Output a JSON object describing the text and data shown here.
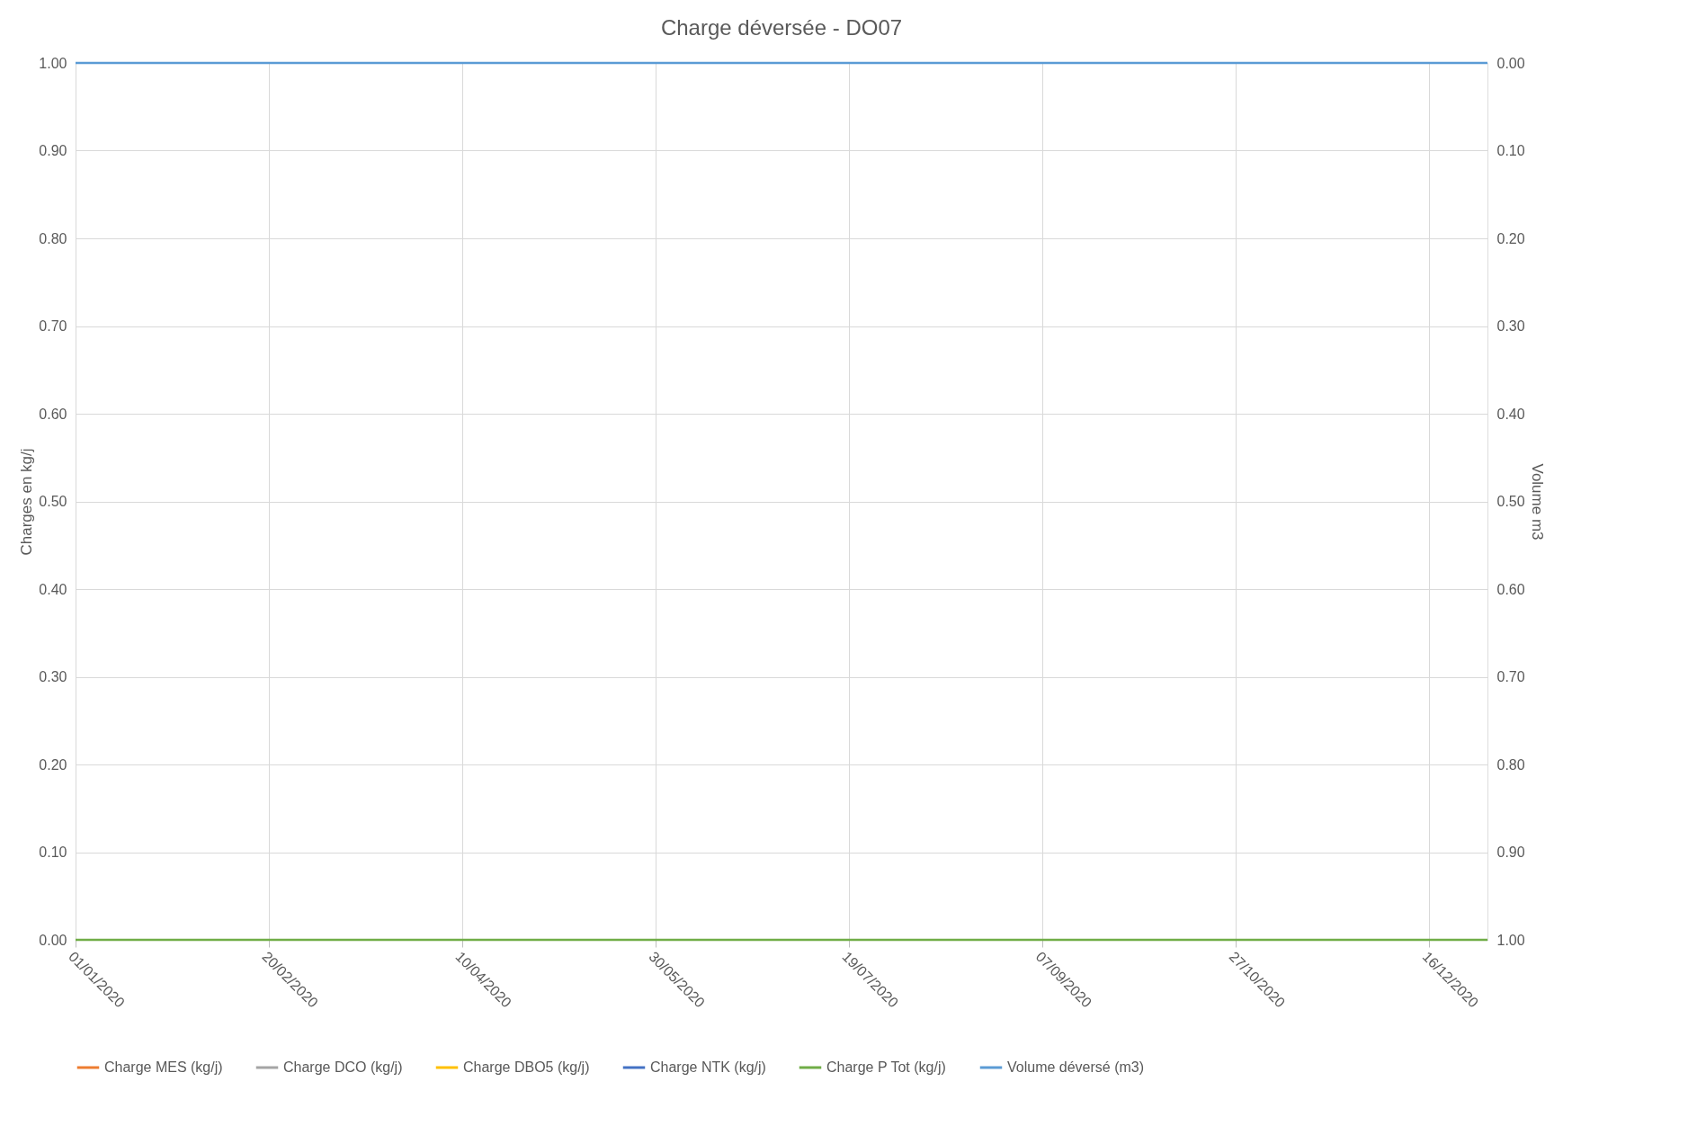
{
  "chart_data": {
    "type": "line",
    "title": "Charge déversée - DO07",
    "ylabel": "Charges en kg/j",
    "y2label": "Volume m3",
    "x": [
      "2020-01-01",
      "2020-12-31"
    ],
    "series": [
      {
        "name": "Charge MES (kg/j)",
        "color": "#ed7d31",
        "values": [
          null,
          null
        ]
      },
      {
        "name": "Charge DCO (kg/j)",
        "color": "#a5a5a5",
        "values": [
          null,
          null
        ]
      },
      {
        "name": "Charge DBO5 (kg/j)",
        "color": "#ffc000",
        "values": [
          null,
          null
        ]
      },
      {
        "name": "Charge NTK (kg/j)",
        "color": "#4472c4",
        "values": [
          null,
          null
        ]
      },
      {
        "name": "Charge P Tot (kg/j)",
        "color": "#70ad47",
        "values": [
          0,
          0
        ]
      },
      {
        "name": "Volume déversé (m3)",
        "color": "#5b9bd5",
        "values": [
          0,
          0
        ],
        "axis": "y2"
      }
    ],
    "xlim": [
      "2020-01-01",
      "2020-12-31"
    ],
    "xticks": [
      {
        "value": "2020-01-01",
        "label": "01/01/2020"
      },
      {
        "value": "2020-02-20",
        "label": "20/02/2020"
      },
      {
        "value": "2020-04-10",
        "label": "10/04/2020"
      },
      {
        "value": "2020-05-30",
        "label": "30/05/2020"
      },
      {
        "value": "2020-07-19",
        "label": "19/07/2020"
      },
      {
        "value": "2020-09-07",
        "label": "07/09/2020"
      },
      {
        "value": "2020-10-27",
        "label": "27/10/2020"
      },
      {
        "value": "2020-12-16",
        "label": "16/12/2020"
      }
    ],
    "ylim": [
      0,
      1
    ],
    "yticks": [
      {
        "value": 0,
        "label": "0.00"
      },
      {
        "value": 0.1,
        "label": "0.10"
      },
      {
        "value": 0.2,
        "label": "0.20"
      },
      {
        "value": 0.3,
        "label": "0.30"
      },
      {
        "value": 0.4,
        "label": "0.40"
      },
      {
        "value": 0.5,
        "label": "0.50"
      },
      {
        "value": 0.6,
        "label": "0.60"
      },
      {
        "value": 0.7,
        "label": "0.70"
      },
      {
        "value": 0.8,
        "label": "0.80"
      },
      {
        "value": 0.9,
        "label": "0.90"
      },
      {
        "value": 1,
        "label": "1.00"
      }
    ],
    "y2lim": [
      1,
      0
    ],
    "y2ticks": [
      {
        "value": 0,
        "label": "0.00"
      },
      {
        "value": 0.1,
        "label": "0.10"
      },
      {
        "value": 0.2,
        "label": "0.20"
      },
      {
        "value": 0.3,
        "label": "0.30"
      },
      {
        "value": 0.4,
        "label": "0.40"
      },
      {
        "value": 0.5,
        "label": "0.50"
      },
      {
        "value": 0.6,
        "label": "0.60"
      },
      {
        "value": 0.7,
        "label": "0.70"
      },
      {
        "value": 0.8,
        "label": "0.80"
      },
      {
        "value": 0.9,
        "label": "0.90"
      },
      {
        "value": 1,
        "label": "1.00"
      }
    ],
    "grid": true,
    "legend": "bottom",
    "marker": "none",
    "line_style": "solid"
  }
}
